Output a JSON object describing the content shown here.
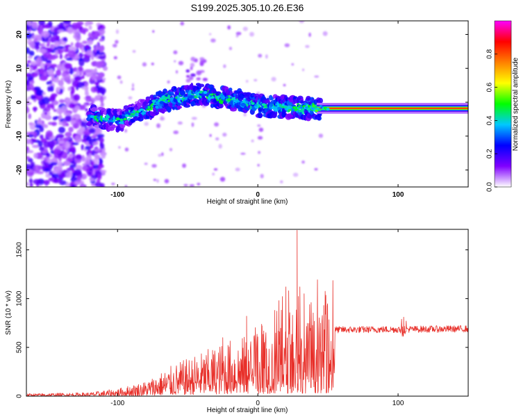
{
  "title": "S199.2025.305.10.26.E36",
  "chart_data": [
    {
      "type": "heatmap",
      "name": "spectrogram",
      "xlabel": "Height of straight line (km)",
      "ylabel": "Frequency (Hz)",
      "xlim": [
        -165,
        150
      ],
      "ylim": [
        -25,
        24
      ],
      "xticks": [
        -100,
        0,
        100
      ],
      "yticks": [
        -20,
        -10,
        0,
        10,
        20
      ],
      "xtick_labels": [
        "-100",
        "0",
        "100"
      ],
      "ytick_labels": [
        "-20",
        "-10",
        "0",
        "10",
        "20"
      ],
      "ridge": [
        {
          "x": -118,
          "y": -4
        },
        {
          "x": -100,
          "y": -5.5
        },
        {
          "x": -85,
          "y": -3
        },
        {
          "x": -70,
          "y": 0
        },
        {
          "x": -55,
          "y": 1.5
        },
        {
          "x": -40,
          "y": 2.5
        },
        {
          "x": -20,
          "y": 1
        },
        {
          "x": 0,
          "y": -1
        },
        {
          "x": 20,
          "y": -1.5
        },
        {
          "x": 40,
          "y": -1.8
        },
        {
          "x": 150,
          "y": -1.8
        }
      ],
      "colorbar": {
        "label": "Normalized spectral amplitude",
        "range": [
          0,
          1
        ],
        "ticks": [
          0.0,
          0.2,
          0.4,
          0.6,
          0.8
        ],
        "tick_labels": [
          "0.0",
          "0.2",
          "0.4",
          "0.6",
          "0.8"
        ],
        "colors": [
          "#ffffff",
          "#8000ff",
          "#0000ff",
          "#00c8ff",
          "#00ff00",
          "#ffff00",
          "#ff8000",
          "#ff0000",
          "#ff00ff"
        ]
      }
    },
    {
      "type": "line",
      "name": "snr",
      "xlabel": "Height of straight line (km)",
      "ylabel": "SNR (10 * v/v)",
      "xlim": [
        -165,
        150
      ],
      "ylim": [
        0,
        1710
      ],
      "xticks": [
        -100,
        0,
        100
      ],
      "yticks": [
        0,
        500,
        1000,
        1500
      ],
      "xtick_labels": [
        "-100",
        "0",
        "100"
      ],
      "ytick_labels": [
        "0",
        "500",
        "1000",
        "1500"
      ],
      "color": "#e8302a",
      "envelope": [
        {
          "x": -165,
          "y": 20
        },
        {
          "x": -120,
          "y": 30
        },
        {
          "x": -100,
          "y": 60
        },
        {
          "x": -80,
          "y": 120
        },
        {
          "x": -60,
          "y": 250
        },
        {
          "x": -40,
          "y": 350
        },
        {
          "x": -20,
          "y": 450
        },
        {
          "x": 0,
          "y": 500
        },
        {
          "x": 20,
          "y": 550
        },
        {
          "x": 40,
          "y": 620
        },
        {
          "x": 55,
          "y": 680
        },
        {
          "x": 150,
          "y": 690
        }
      ],
      "peaks": [
        {
          "x": 28,
          "y": 1700
        },
        {
          "x": 20,
          "y": 1120
        },
        {
          "x": 22,
          "y": 1080
        },
        {
          "x": 30,
          "y": 1120
        },
        {
          "x": 15,
          "y": 980
        },
        {
          "x": 33,
          "y": 1050
        },
        {
          "x": -8,
          "y": 820
        },
        {
          "x": 38,
          "y": 960
        },
        {
          "x": 47,
          "y": 930
        },
        {
          "x": -25,
          "y": 600
        },
        {
          "x": 12,
          "y": 880
        },
        {
          "x": 3,
          "y": 720
        },
        {
          "x": 104,
          "y": 810
        }
      ]
    }
  ]
}
